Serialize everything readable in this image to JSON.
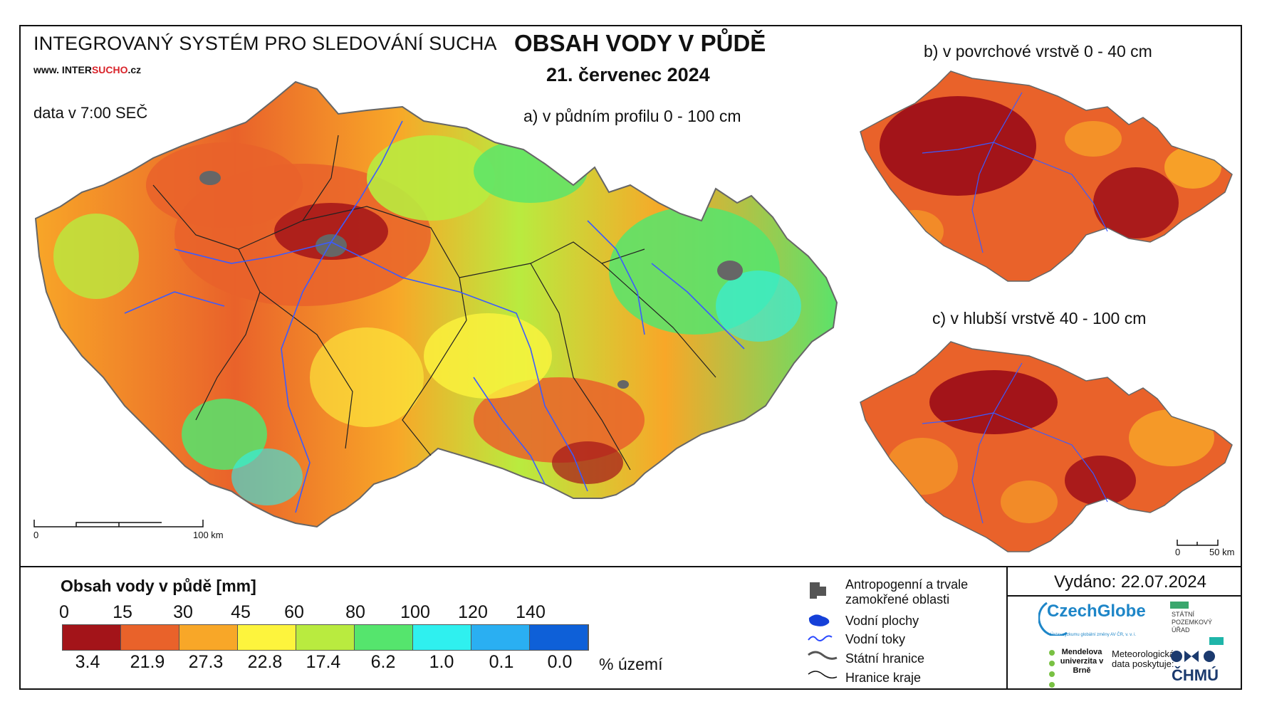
{
  "header": {
    "system_name": "INTEGROVANÝ SYSTÉM PRO SLEDOVÁNÍ SUCHA",
    "website_prefix": "www. INTER",
    "website_highlight": "SUCHO",
    "website_suffix": ".cz",
    "data_time": "data v 7:00 SEČ",
    "title": "OBSAH VODY V PŮDĚ",
    "date": "21. červenec 2024"
  },
  "maps": {
    "a_label": "a) v půdním profilu 0 - 100 cm",
    "b_label": "b) v povrchové vrstvě 0 - 40 cm",
    "c_label": "c) v hlubší vrstvě 40 - 100 cm",
    "scale_main_start": "0",
    "scale_main_end": "100 km",
    "scale_small_start": "0",
    "scale_small_end": "50 km"
  },
  "legend": {
    "title": "Obsah vody v půdě  [mm]",
    "ticks": [
      "0",
      "15",
      "30",
      "45",
      "60",
      "80",
      "100",
      "120",
      "140"
    ],
    "colors": [
      "#a31419",
      "#e9622a",
      "#f8a728",
      "#fdf43d",
      "#b9eb3f",
      "#55e56d",
      "#2ff0ef",
      "#2aaff2",
      "#0e60d8"
    ],
    "percentages": [
      "3.4",
      "21.9",
      "27.3",
      "22.8",
      "17.4",
      "6.2",
      "1.0",
      "0.1",
      "0.0"
    ],
    "percent_unit": "% území"
  },
  "symbols": {
    "anthropogenic": "Antropogenní a trvale zamokřené oblasti",
    "water_bodies": "Vodní plochy",
    "water_courses": "Vodní toky",
    "state_border": "Státní hranice",
    "region_border": "Hranice kraje"
  },
  "footer": {
    "issued": "Vydáno: 22.07.2024",
    "czechglobe": "CzechGlobe",
    "czechglobe_sub": "Ústav výzkumu globální změny AV ČR, v. v. i.",
    "spu": "STÁTNÍ POZEMKOVÝ ÚŘAD",
    "mendel": "Mendelova univerzita v Brně",
    "meteo": "Meteorologická data poskytuje:",
    "chmu": "ČHMÚ"
  }
}
